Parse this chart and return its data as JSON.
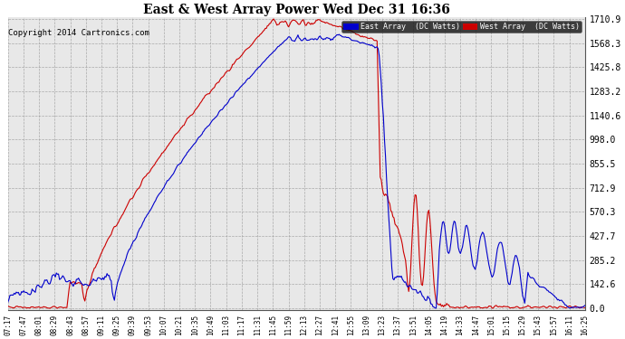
{
  "title": "East & West Array Power Wed Dec 31 16:36",
  "copyright": "Copyright 2014 Cartronics.com",
  "legend_east": "East Array  (DC Watts)",
  "legend_west": "West Array  (DC Watts)",
  "east_color": "#0000cc",
  "west_color": "#cc0000",
  "background_color": "#ffffff",
  "grid_color": "#999999",
  "plot_bg_color": "#e8e8e8",
  "yticks": [
    0.0,
    142.6,
    285.2,
    427.7,
    570.3,
    712.9,
    855.5,
    998.0,
    1140.6,
    1283.2,
    1425.8,
    1568.3,
    1710.9
  ],
  "ymax": 1710.9,
  "xtick_labels": [
    "07:17",
    "07:47",
    "08:01",
    "08:29",
    "08:43",
    "08:57",
    "09:11",
    "09:25",
    "09:39",
    "09:53",
    "10:07",
    "10:21",
    "10:35",
    "10:49",
    "11:03",
    "11:17",
    "11:31",
    "11:45",
    "11:59",
    "12:13",
    "12:27",
    "12:41",
    "12:55",
    "13:09",
    "13:23",
    "13:37",
    "13:51",
    "14:05",
    "14:19",
    "14:33",
    "14:47",
    "15:01",
    "15:15",
    "15:29",
    "15:43",
    "15:57",
    "16:11",
    "16:25"
  ],
  "figsize": [
    6.9,
    3.75
  ],
  "dpi": 100
}
